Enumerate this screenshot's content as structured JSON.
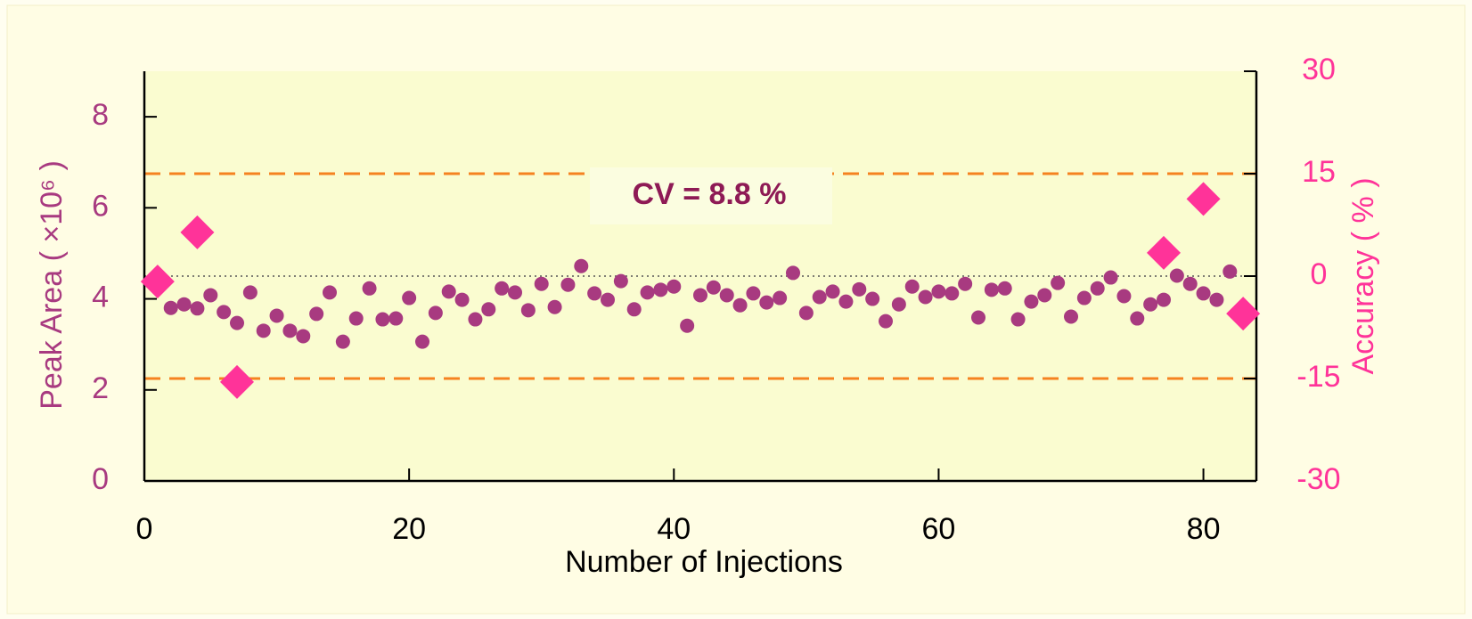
{
  "chart_data": {
    "type": "scatter",
    "xlabel": "Number of Injections",
    "ylabel": "Peak Area ( ×10⁶ )",
    "y2label": "Accuracy ( % )",
    "annotation": "CV = 8.8 %",
    "xlim": [
      0,
      84
    ],
    "xticks": [
      0,
      20,
      40,
      60,
      80
    ],
    "ylim": [
      0,
      9
    ],
    "yticks": [
      0,
      2,
      4,
      6,
      8
    ],
    "y2lim": [
      -30,
      30
    ],
    "y2ticks": [
      -30,
      -15,
      0,
      15,
      30
    ],
    "hlines": [
      {
        "value": 15,
        "axis": "y2",
        "style": "dashed",
        "color": "#f58220"
      },
      {
        "value": -15,
        "axis": "y2",
        "style": "dashed",
        "color": "#f58220"
      },
      {
        "value": 0,
        "axis": "y2",
        "style": "dotted",
        "color": "#555555"
      }
    ],
    "series": [
      {
        "marker": "circle",
        "color": "#a83a80",
        "x": [
          1,
          2,
          3,
          4,
          5,
          6,
          7,
          8,
          9,
          10,
          11,
          12,
          13,
          14,
          15,
          16,
          17,
          18,
          19,
          20,
          21,
          22,
          23,
          24,
          25,
          26,
          27,
          28,
          29,
          30,
          31,
          32,
          33,
          34,
          35,
          36,
          37,
          38,
          39,
          40,
          41,
          42,
          43,
          44,
          45,
          46,
          47,
          48,
          49,
          50,
          51,
          52,
          53,
          54,
          55,
          56,
          57,
          58,
          59,
          60,
          61,
          62,
          63,
          64,
          65,
          66,
          67,
          68,
          69,
          70,
          71,
          72,
          73,
          74,
          75,
          76,
          77,
          78,
          79,
          80,
          81,
          82,
          83
        ],
        "values": [
          4.39,
          3.8,
          3.88,
          3.79,
          4.08,
          3.71,
          3.47,
          4.14,
          3.3,
          3.63,
          3.3,
          3.18,
          3.67,
          4.14,
          3.06,
          3.57,
          4.23,
          3.55,
          3.57,
          4.02,
          3.06,
          3.69,
          4.16,
          3.98,
          3.55,
          3.77,
          4.23,
          4.14,
          3.75,
          4.33,
          3.82,
          4.31,
          4.72,
          4.12,
          3.98,
          4.39,
          3.77,
          4.14,
          4.2,
          4.27,
          3.41,
          4.08,
          4.25,
          4.08,
          3.86,
          4.12,
          3.92,
          4.02,
          4.57,
          3.69,
          4.04,
          4.16,
          3.94,
          4.21,
          4.0,
          3.51,
          3.88,
          4.27,
          4.04,
          4.16,
          4.12,
          4.33,
          3.59,
          4.2,
          4.23,
          3.55,
          3.94,
          4.08,
          4.35,
          3.61,
          4.02,
          4.23,
          4.47,
          4.06,
          3.57,
          3.88,
          3.98,
          4.51,
          4.33,
          4.12,
          3.98,
          4.6,
          3.7
        ]
      },
      {
        "marker": "diamond",
        "color": "#ff3399",
        "axis": "y2",
        "x": [
          1,
          4,
          7,
          77,
          80,
          83
        ],
        "values": [
          -0.8,
          6.4,
          -15.5,
          3.4,
          11.3,
          -5.5
        ]
      }
    ],
    "left_axis_color": "#a83a80",
    "right_axis_color": "#ff3399",
    "plot_background": "#fafcd0"
  }
}
